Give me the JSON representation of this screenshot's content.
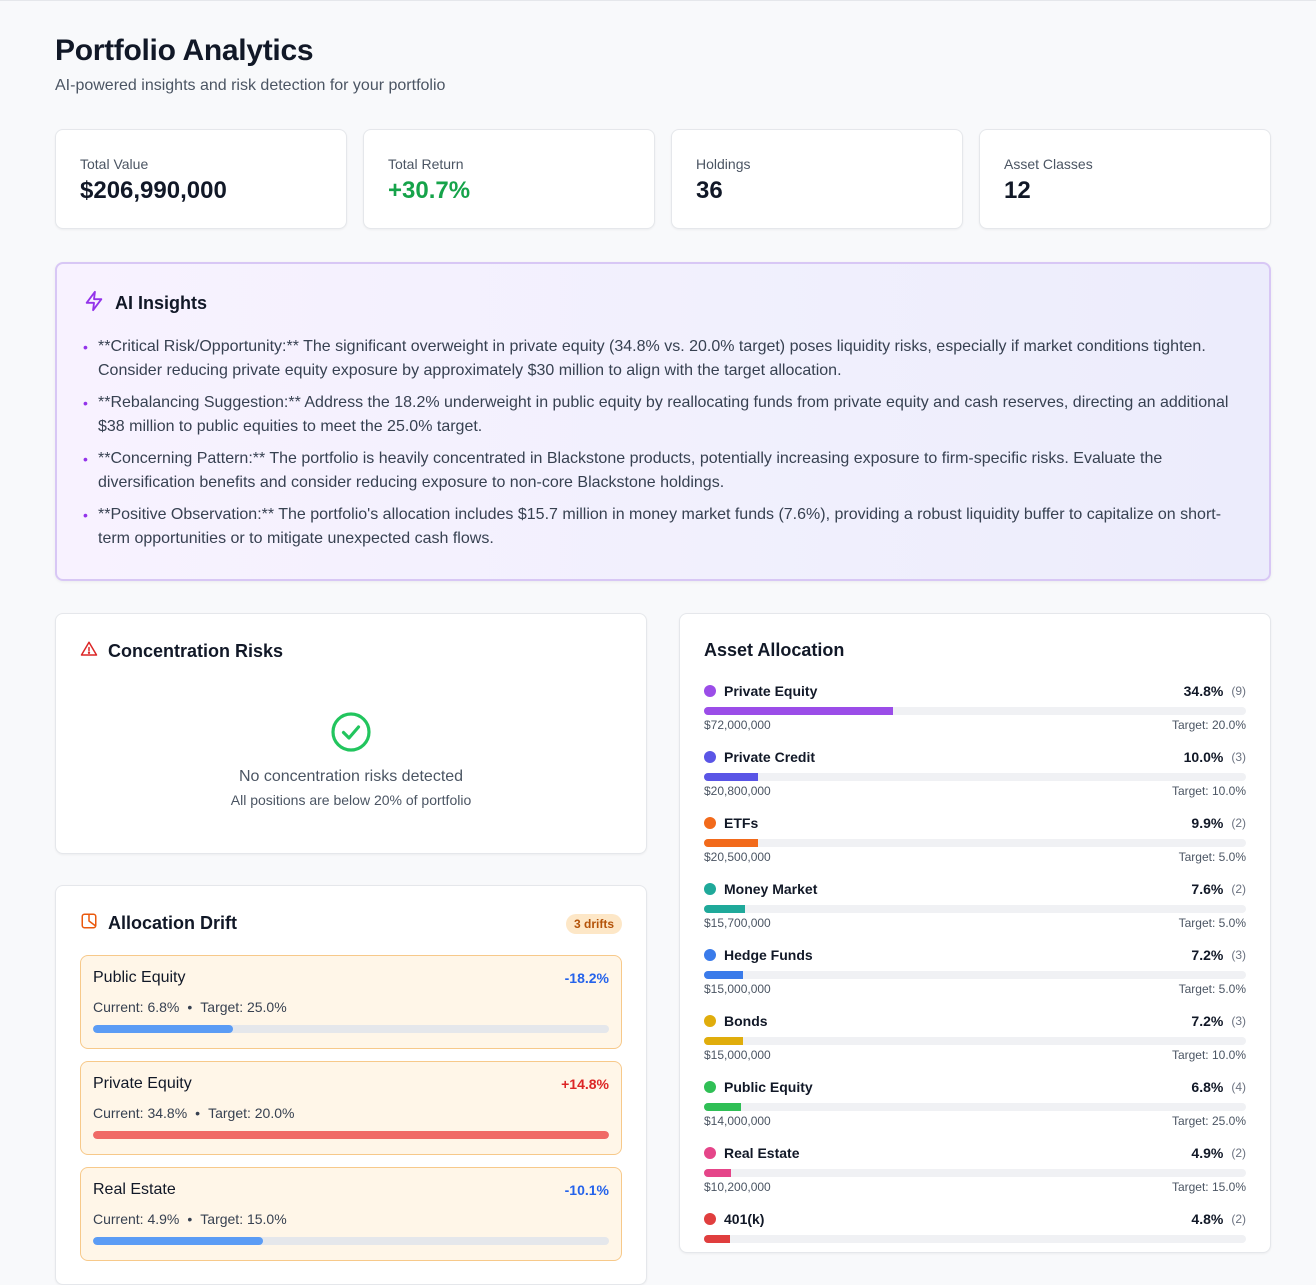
{
  "header": {
    "title": "Portfolio Analytics",
    "subtitle": "AI-powered insights and risk detection for your portfolio"
  },
  "stats": [
    {
      "label": "Total Value",
      "value": "$206,990,000"
    },
    {
      "label": "Total Return",
      "value": "+30.7%"
    },
    {
      "label": "Holdings",
      "value": "36"
    },
    {
      "label": "Asset Classes",
      "value": "12"
    }
  ],
  "insights": {
    "title": "AI Insights",
    "icon": "lightning-icon",
    "bullet": "•",
    "items": [
      "**Critical Risk/Opportunity:** The significant overweight in private equity (34.8% vs. 20.0% target) poses liquidity risks, especially if market conditions tighten. Consider reducing private equity exposure by approximately $30 million to align with the target allocation.",
      "**Rebalancing Suggestion:** Address the 18.2% underweight in public equity by reallocating funds from private equity and cash reserves, directing an additional $38 million to public equities to meet the 25.0% target.",
      "**Concerning Pattern:** The portfolio is heavily concentrated in Blackstone products, potentially increasing exposure to firm-specific risks. Evaluate the diversification benefits and consider reducing exposure to non-core Blackstone holdings.",
      "**Positive Observation:** The portfolio's allocation includes $15.7 million in money market funds (7.6%), providing a robust liquidity buffer to capitalize on short-term opportunities or to mitigate unexpected cash flows."
    ]
  },
  "concentration": {
    "title": "Concentration Risks",
    "icon": "warning-triangle-icon",
    "empty_title": "No concentration risks detected",
    "empty_subtitle": "All positions are below 20% of portfolio"
  },
  "drift": {
    "title": "Allocation Drift",
    "icon": "chart-pie-icon",
    "badge": "3 drifts",
    "separator": "•",
    "items": [
      {
        "name": "Public Equity",
        "delta": "-18.2%",
        "current": "Current: 6.8%",
        "target": "Target: 25.0%",
        "fill": 0.272,
        "direction": "under"
      },
      {
        "name": "Private Equity",
        "delta": "+14.8%",
        "current": "Current: 34.8%",
        "target": "Target: 20.0%",
        "fill": 1.0,
        "direction": "over"
      },
      {
        "name": "Real Estate",
        "delta": "-10.1%",
        "current": "Current: 4.9%",
        "target": "Target: 15.0%",
        "fill": 0.33,
        "direction": "under"
      }
    ]
  },
  "allocation": {
    "title": "Asset Allocation",
    "items": [
      {
        "name": "Private Equity",
        "pct": "34.8%",
        "count": "(9)",
        "amount": "$72,000,000",
        "target": "Target: 20.0%",
        "share": 0.348,
        "color": "#9b4de8"
      },
      {
        "name": "Private Credit",
        "pct": "10.0%",
        "count": "(3)",
        "amount": "$20,800,000",
        "target": "Target: 10.0%",
        "share": 0.1,
        "color": "#5a55e6"
      },
      {
        "name": "ETFs",
        "pct": "9.9%",
        "count": "(2)",
        "amount": "$20,500,000",
        "target": "Target: 5.0%",
        "share": 0.099,
        "color": "#f26a1b"
      },
      {
        "name": "Money Market",
        "pct": "7.6%",
        "count": "(2)",
        "amount": "$15,700,000",
        "target": "Target: 5.0%",
        "share": 0.076,
        "color": "#1fa99a"
      },
      {
        "name": "Hedge Funds",
        "pct": "7.2%",
        "count": "(3)",
        "amount": "$15,000,000",
        "target": "Target: 5.0%",
        "share": 0.072,
        "color": "#3a7bea"
      },
      {
        "name": "Bonds",
        "pct": "7.2%",
        "count": "(3)",
        "amount": "$15,000,000",
        "target": "Target: 10.0%",
        "share": 0.072,
        "color": "#e0ad0c"
      },
      {
        "name": "Public Equity",
        "pct": "6.8%",
        "count": "(4)",
        "amount": "$14,000,000",
        "target": "Target: 25.0%",
        "share": 0.068,
        "color": "#2fbf55"
      },
      {
        "name": "Real Estate",
        "pct": "4.9%",
        "count": "(2)",
        "amount": "$10,200,000",
        "target": "Target: 15.0%",
        "share": 0.049,
        "color": "#e54589"
      },
      {
        "name": "401(k)",
        "pct": "4.8%",
        "count": "(2)",
        "amount": "",
        "target": "",
        "share": 0.048,
        "color": "#e03e3e"
      }
    ]
  },
  "colors": {
    "positive": "#16a34a",
    "under_drift": "#2563eb",
    "over_drift": "#dc2626",
    "under_bar": "#5b9cf5",
    "over_bar": "#f06a66",
    "insight_accent": "#9333ea"
  }
}
